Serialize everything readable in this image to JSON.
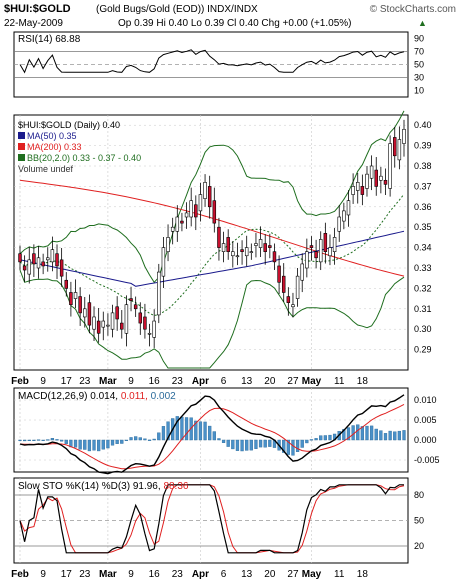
{
  "header": {
    "symbol": "$HUI:$GOLD",
    "description": "(Gold Bugs/Gold (EOD)) INDX/INDX",
    "watermark": "© StockCharts.com",
    "date": "22-May-2009",
    "ohlc": "Op 0.39  Hi 0.40  Lo 0.39  Cl 0.40  Chg +0.00 (+1.05%)",
    "chg_arrow": "▲"
  },
  "rsi_panel": {
    "label": "RSI(14) 68.88",
    "levels": [
      "90",
      "70",
      "50",
      "30",
      "10"
    ]
  },
  "price_panel": {
    "legend": [
      {
        "text": "$HUI:$GOLD (Daily) 0.40",
        "color": "#000000"
      },
      {
        "text": "MA(50) 0.35",
        "color": "#1a1a8c"
      },
      {
        "text": "MA(200) 0.33",
        "color": "#e02020"
      },
      {
        "text": "BB(20,2.0) 0.33 - 0.37 - 0.40",
        "color": "#1f6e1f"
      },
      {
        "text": "Volume undef",
        "color": "#333333"
      }
    ],
    "y_ticks": [
      "0.40",
      "0.39",
      "0.38",
      "0.37",
      "0.36",
      "0.35",
      "0.34",
      "0.33",
      "0.32",
      "0.31",
      "0.30",
      "0.29"
    ]
  },
  "macd_panel": {
    "label_prefix": "MACD(12,26,9) 0.014, ",
    "label_signal": "0.011",
    "label_hist": "0.002",
    "y_ticks": [
      "0.010",
      "0.005",
      "0.000",
      "-0.005"
    ]
  },
  "sto_panel": {
    "label_prefix": "Slow STO %K(14) %D(3) 91.96, ",
    "label_d": "88.36",
    "y_ticks": [
      "80",
      "50",
      "20"
    ]
  },
  "x_axis": {
    "labels": [
      {
        "text": "Feb",
        "bold": true
      },
      {
        "text": "9",
        "bold": false
      },
      {
        "text": "17",
        "bold": false
      },
      {
        "text": "23",
        "bold": false
      },
      {
        "text": "Mar",
        "bold": true
      },
      {
        "text": "9",
        "bold": false
      },
      {
        "text": "16",
        "bold": false
      },
      {
        "text": "23",
        "bold": false
      },
      {
        "text": "Apr",
        "bold": true
      },
      {
        "text": "6",
        "bold": false
      },
      {
        "text": "13",
        "bold": false
      },
      {
        "text": "20",
        "bold": false
      },
      {
        "text": "27",
        "bold": false
      },
      {
        "text": "May",
        "bold": true
      },
      {
        "text": "11",
        "bold": false
      },
      {
        "text": "18",
        "bold": false
      }
    ]
  },
  "colors": {
    "up": "#ffffff",
    "down": "#c8102e",
    "ma50": "#1a1a8c",
    "ma200": "#e02020",
    "bb": "#1f6e1f",
    "hist": "#4a90c8",
    "panel_border": "#000000",
    "grid": "#c8c8c8"
  },
  "chart_data": {
    "type": "line",
    "title": "$HUI:$GOLD (Daily)",
    "x_labels": [
      "Feb",
      "9",
      "17",
      "23",
      "Mar",
      "9",
      "16",
      "23",
      "Apr",
      "6",
      "13",
      "20",
      "27",
      "May",
      "11",
      "18"
    ],
    "series": [
      {
        "name": "$HUI:$GOLD (Daily)",
        "last": 0.4,
        "close": [
          0.333,
          0.329,
          0.334,
          0.332,
          0.335,
          0.331,
          0.335,
          0.339,
          0.331,
          0.326,
          0.32,
          0.312,
          0.318,
          0.308,
          0.31,
          0.302,
          0.306,
          0.298,
          0.304,
          0.302,
          0.308,
          0.305,
          0.3,
          0.312,
          0.314,
          0.31,
          0.303,
          0.3,
          0.298,
          0.304,
          0.328,
          0.34,
          0.345,
          0.35,
          0.355,
          0.352,
          0.357,
          0.363,
          0.355,
          0.366,
          0.372,
          0.36,
          0.352,
          0.34,
          0.342,
          0.338,
          0.338,
          0.336,
          0.338,
          0.34,
          0.338,
          0.342,
          0.344,
          0.338,
          0.34,
          0.333,
          0.323,
          0.318,
          0.313,
          0.312,
          0.326,
          0.332,
          0.338,
          0.34,
          0.335,
          0.344,
          0.338,
          0.34,
          0.345,
          0.355,
          0.358,
          0.363,
          0.37,
          0.372,
          0.366,
          0.376,
          0.38,
          0.37,
          0.375,
          0.371,
          0.391,
          0.385,
          0.393,
          0.398
        ]
      },
      {
        "name": "MA(50)",
        "last": 0.35
      },
      {
        "name": "MA(200)",
        "last": 0.33
      },
      {
        "name": "BB(20,2.0)",
        "lower": 0.33,
        "middle": 0.37,
        "upper": 0.4
      },
      {
        "name": "RSI(14)",
        "last": 68.88
      },
      {
        "name": "MACD(12,26,9)",
        "macd": 0.014,
        "signal": 0.011,
        "histogram": 0.002
      },
      {
        "name": "Slow STO %K(14) %D(3)",
        "k": 91.96,
        "d": 88.36
      }
    ],
    "ylim_price": [
      0.28,
      0.405
    ],
    "ylim_rsi": [
      0,
      100
    ],
    "ylim_macd": [
      -0.008,
      0.013
    ],
    "ylim_sto": [
      0,
      100
    ]
  }
}
